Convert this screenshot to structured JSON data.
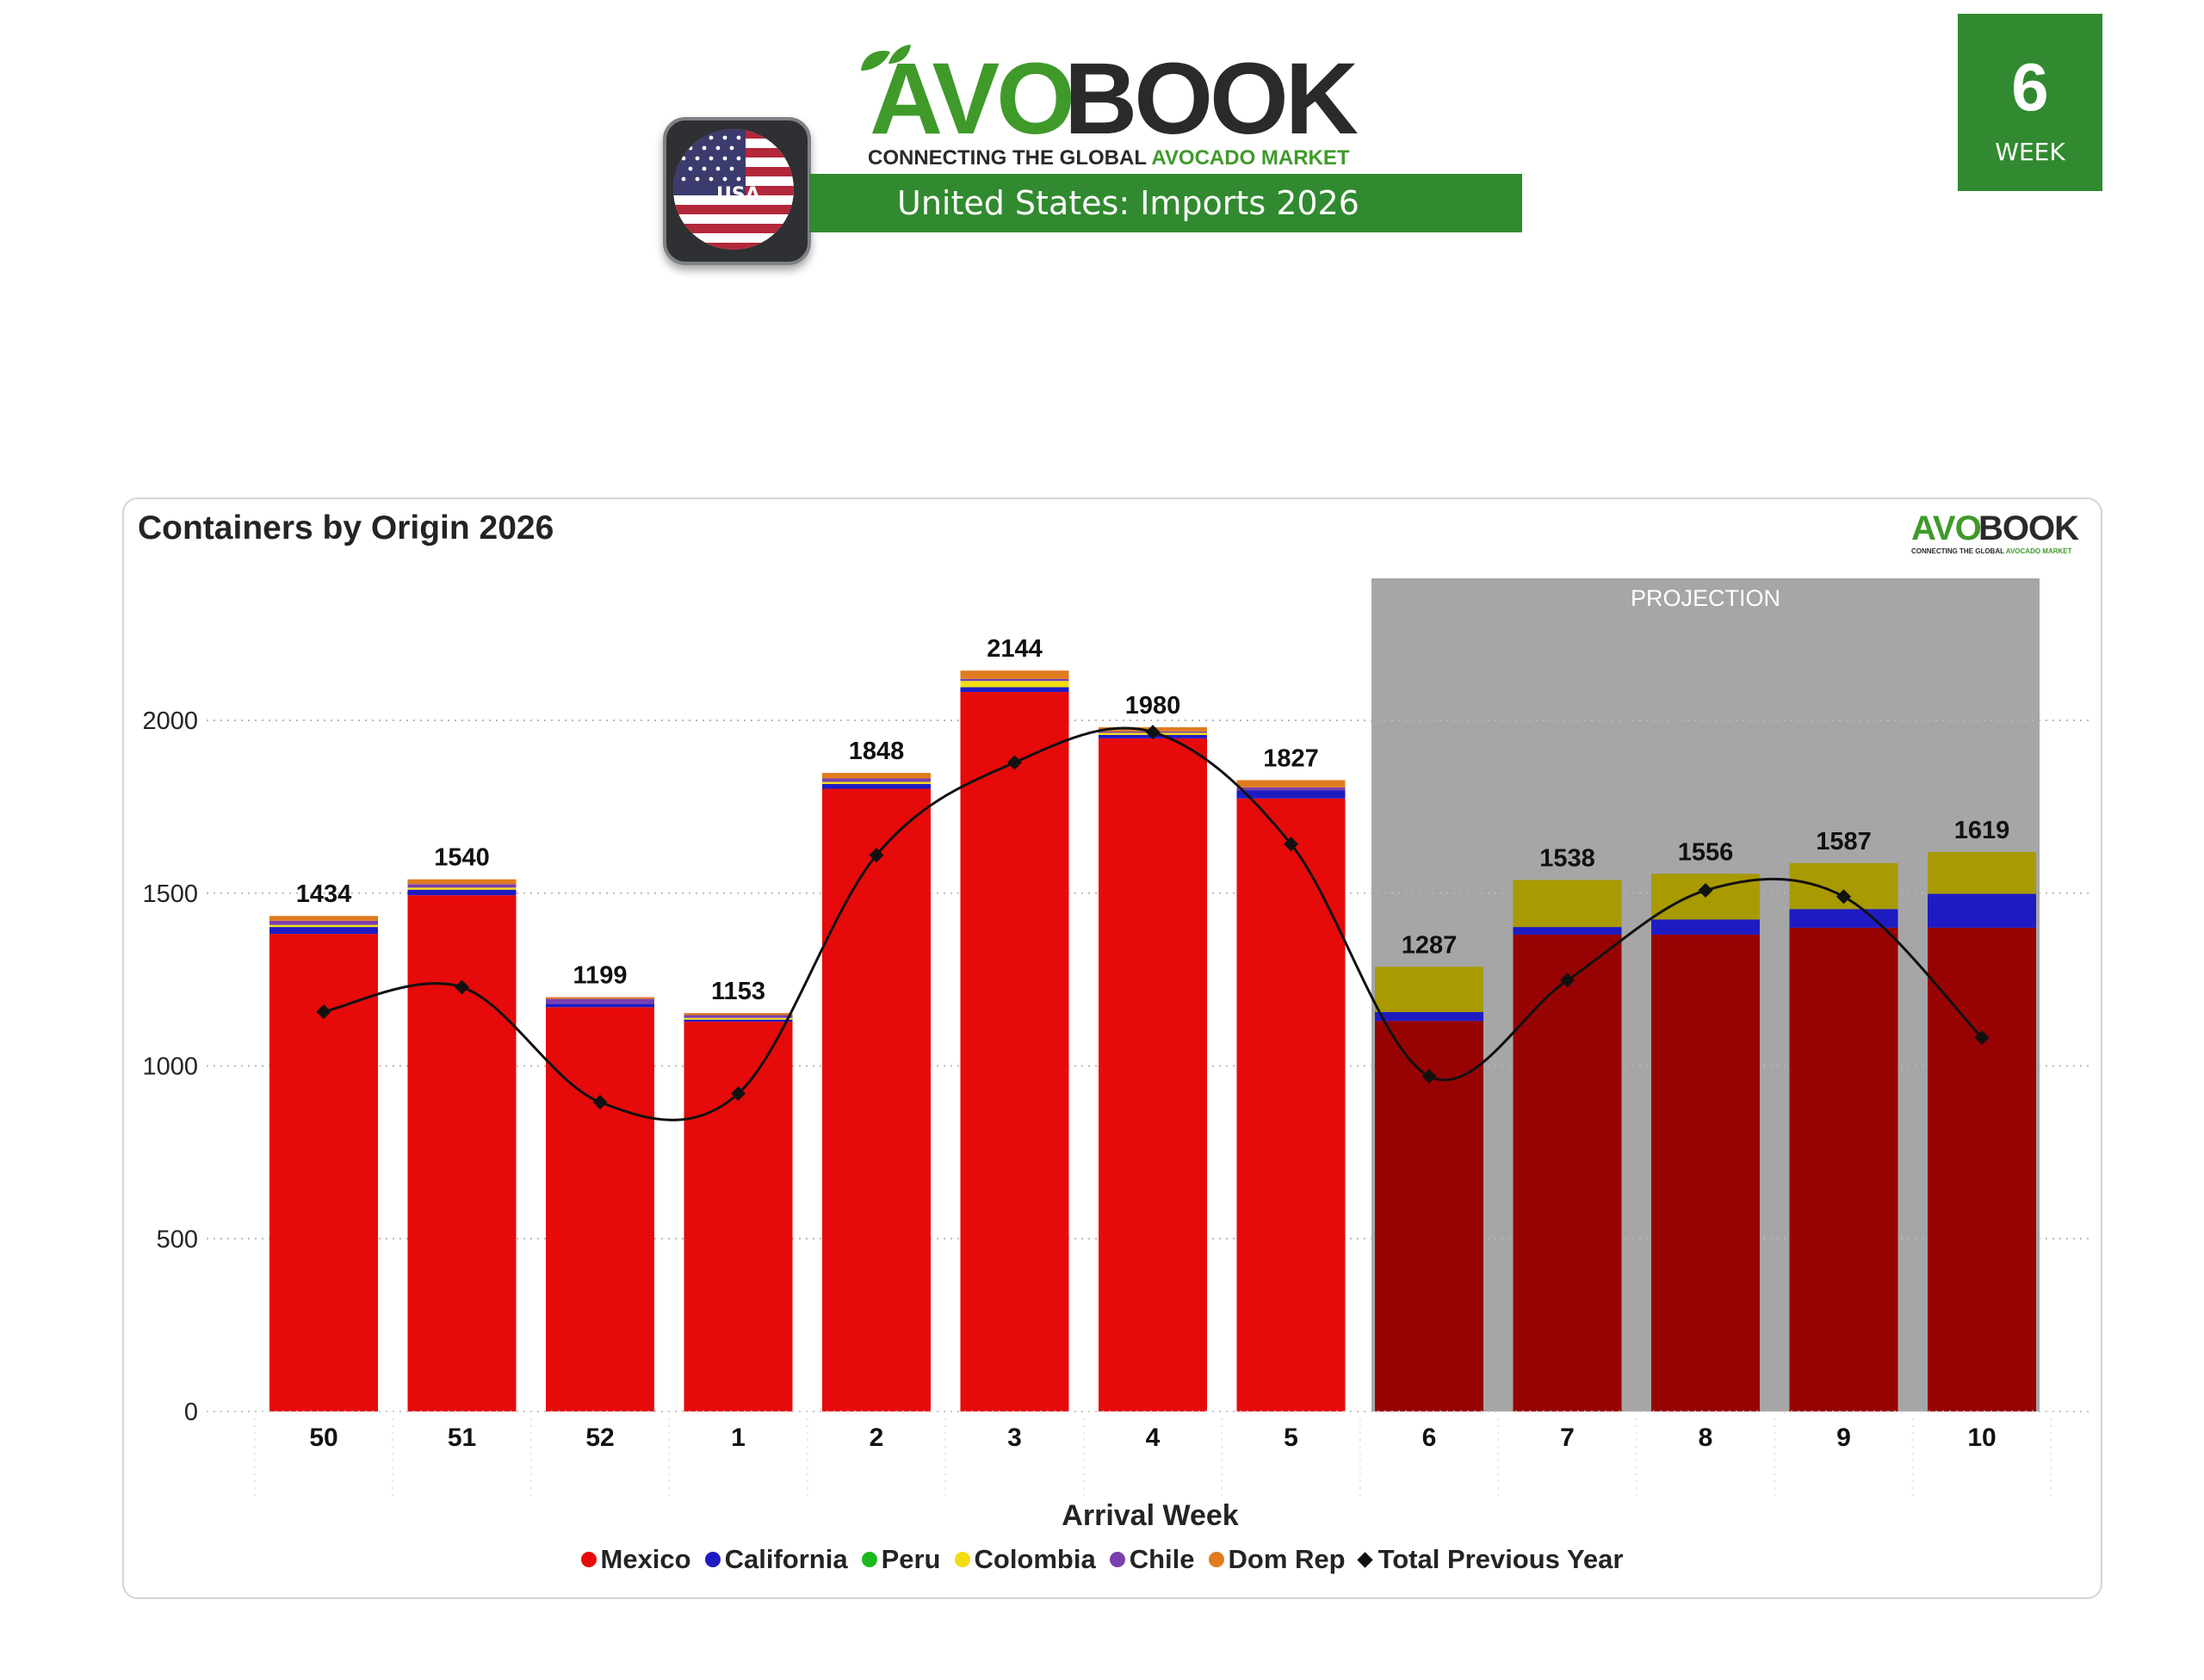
{
  "header": {
    "brand_avo": "AVO",
    "brand_book": "BOOK",
    "tagline_prefix": "CONNECTING THE GLOBAL ",
    "tagline_highlight": "AVOCADO MARKET",
    "country_badge": "USA",
    "title_country": "United States",
    "title_rest": ": Imports 2026",
    "week_number": "6",
    "week_label": "WEEK"
  },
  "colors": {
    "brand_green": "#318a2f",
    "logo_green": "#3f9a2a",
    "projection_bg": "#a6a6a6",
    "line": "#111111"
  },
  "chart_data": {
    "type": "bar",
    "stacked": true,
    "title": "Containers by Origin 2026",
    "xlabel": "Arrival Week",
    "ylabel": "",
    "ylim": [
      0,
      2300
    ],
    "yticks": [
      0,
      500,
      1000,
      1500,
      2000
    ],
    "grid": true,
    "legend_position": "bottom",
    "projection_label": "PROJECTION",
    "projection_categories": [
      "6",
      "7",
      "8",
      "9",
      "10"
    ],
    "categories": [
      "50",
      "51",
      "52",
      "1",
      "2",
      "3",
      "4",
      "5",
      "6",
      "7",
      "8",
      "9",
      "10"
    ],
    "totals": [
      1434,
      1540,
      1199,
      1153,
      1848,
      2144,
      1980,
      1827,
      1287,
      1538,
      1556,
      1587,
      1619
    ],
    "series": [
      {
        "name": "Mexico",
        "color": "#e60a0a",
        "projection_color": "#970303",
        "values": [
          1382,
          1494,
          1170,
          1128,
          1802,
          2082,
          1948,
          1774,
          1130,
          1380,
          1380,
          1400,
          1400
        ]
      },
      {
        "name": "California",
        "color": "#1f1bc2",
        "values": [
          20,
          16,
          10,
          6,
          14,
          14,
          10,
          24,
          26,
          22,
          44,
          54,
          98
        ]
      },
      {
        "name": "Peru",
        "color": "#1bb81b",
        "values": [
          0,
          0,
          0,
          0,
          0,
          0,
          0,
          0,
          0,
          0,
          0,
          0,
          0
        ]
      },
      {
        "name": "Colombia",
        "color": "#f2dd12",
        "projection_color": "#a89a00",
        "values": [
          6,
          6,
          0,
          5,
          6,
          18,
          6,
          0,
          131,
          136,
          132,
          133,
          121
        ]
      },
      {
        "name": "Chile",
        "color": "#7a3fb0",
        "values": [
          12,
          10,
          14,
          8,
          10,
          6,
          4,
          8,
          0,
          0,
          0,
          0,
          0
        ]
      },
      {
        "name": "Dom Rep",
        "color": "#e07b1e",
        "values": [
          14,
          14,
          5,
          6,
          16,
          24,
          12,
          21,
          0,
          0,
          0,
          0,
          0
        ]
      }
    ],
    "line_series": {
      "name": "Total Previous Year",
      "color": "#111111",
      "values": [
        1157,
        1228,
        895,
        920,
        1610,
        1878,
        1966,
        1642,
        970,
        1248,
        1508,
        1490,
        1082
      ]
    }
  }
}
